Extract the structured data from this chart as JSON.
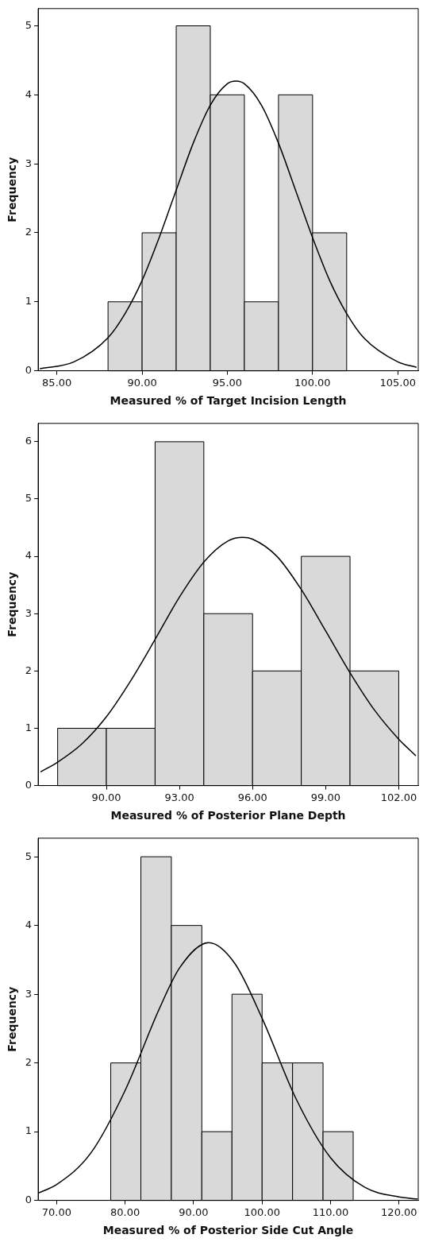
{
  "chart_data": [
    {
      "type": "histogram",
      "xlabel": "Measured % of Target Incision Length",
      "ylabel": "Frequency",
      "bins": [
        88,
        90,
        92,
        94,
        96,
        98,
        100,
        102
      ],
      "marker": "none",
      "series": [
        {
          "type": "histogram",
          "color": "#d9d9d9",
          "values": [
            1,
            2,
            5,
            4,
            1,
            4,
            2
          ]
        },
        {
          "type": "line",
          "color": "#000000",
          "x": [
            84,
            86,
            88,
            89,
            90,
            91,
            92,
            93,
            94,
            95,
            95.5,
            96,
            97,
            98,
            99,
            100,
            101,
            102,
            103,
            105,
            106.1
          ],
          "values": [
            0.03,
            0.13,
            0.48,
            0.83,
            1.31,
            1.93,
            2.62,
            3.3,
            3.85,
            4.16,
            4.2,
            4.16,
            3.85,
            3.3,
            2.62,
            1.93,
            1.31,
            0.83,
            0.48,
            0.13,
            0.05
          ]
        }
      ],
      "xlim": [
        83.9,
        106.2
      ],
      "ylim": [
        0,
        5.25
      ],
      "xticks": [
        {
          "value": 85,
          "label": "85.00"
        },
        {
          "value": 90,
          "label": "90.00"
        },
        {
          "value": 95,
          "label": "95.00"
        },
        {
          "value": 100,
          "label": "100.00"
        },
        {
          "value": 105,
          "label": "105.00"
        }
      ],
      "yticks": [
        0,
        1,
        2,
        3,
        4,
        5
      ]
    },
    {
      "type": "histogram",
      "xlabel": "Measured % of Posterior Plane Depth",
      "ylabel": "Frequency",
      "bins": [
        88,
        90,
        92,
        94,
        96,
        98,
        100,
        102
      ],
      "marker": "none",
      "series": [
        {
          "type": "histogram",
          "color": "#d9d9d9",
          "values": [
            1,
            1,
            6,
            3,
            2,
            4,
            2
          ]
        },
        {
          "type": "line",
          "color": "#000000",
          "x": [
            87.3,
            88,
            89,
            90,
            91,
            92,
            93,
            94,
            95,
            95.6,
            96,
            97,
            98,
            99,
            100,
            101,
            102,
            102.7
          ],
          "values": [
            0.24,
            0.41,
            0.73,
            1.2,
            1.83,
            2.55,
            3.29,
            3.9,
            4.27,
            4.33,
            4.3,
            4.0,
            3.42,
            2.7,
            1.97,
            1.32,
            0.81,
            0.52
          ]
        }
      ],
      "xlim": [
        87.2,
        102.8
      ],
      "ylim": [
        0,
        6.32
      ],
      "xticks": [
        {
          "value": 90,
          "label": "90.00"
        },
        {
          "value": 93,
          "label": "93.00"
        },
        {
          "value": 96,
          "label": "96.00"
        },
        {
          "value": 99,
          "label": "99.00"
        },
        {
          "value": 102,
          "label": "102.00"
        }
      ],
      "yticks": [
        0,
        1,
        2,
        3,
        4,
        5,
        6
      ]
    },
    {
      "type": "histogram",
      "xlabel": "Measured % of Posterior Side Cut Angle",
      "ylabel": "Frequency",
      "bins": [
        77.9,
        82.3,
        86.75,
        91.2,
        95.6,
        100,
        104.45,
        108.9,
        113.3
      ],
      "marker": "none",
      "series": [
        {
          "type": "histogram",
          "color": "#d9d9d9",
          "values": [
            2,
            5,
            4,
            1,
            3,
            2,
            2,
            1
          ]
        },
        {
          "type": "line",
          "color": "#000000",
          "x": [
            67.4,
            70,
            75,
            80,
            85,
            88,
            92.2,
            96,
            100,
            105,
            110,
            115,
            120,
            122.7
          ],
          "values": [
            0.11,
            0.23,
            0.69,
            1.6,
            2.79,
            3.39,
            3.75,
            3.45,
            2.65,
            1.47,
            0.62,
            0.19,
            0.05,
            0.02
          ]
        }
      ],
      "xlim": [
        67.3,
        122.8
      ],
      "ylim": [
        0,
        5.27
      ],
      "xticks": [
        {
          "value": 70,
          "label": "70.00"
        },
        {
          "value": 80,
          "label": "80.00"
        },
        {
          "value": 90,
          "label": "90.00"
        },
        {
          "value": 100,
          "label": "100.00"
        },
        {
          "value": 110,
          "label": "110.00"
        },
        {
          "value": 120,
          "label": "120.00"
        }
      ],
      "yticks": [
        0,
        1,
        2,
        3,
        4,
        5
      ]
    }
  ]
}
